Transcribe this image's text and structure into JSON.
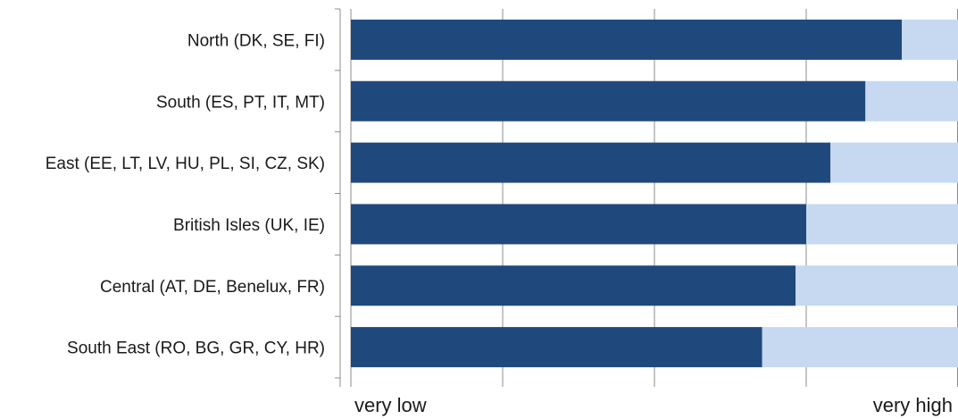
{
  "chart_data": {
    "type": "bar",
    "orientation": "horizontal",
    "stacked": true,
    "title": "",
    "xlabel": "",
    "ylabel": "",
    "categories": [
      "North (DK, SE, FI)",
      "South (ES, PT, IT,  MT)",
      "East (EE, LT, LV, HU, PL, SI, CZ, SK)",
      "British Isles (UK, IE)",
      "Central (AT, DE, Benelux, FR)",
      "South East (RO, BG, GR, CY, HR)"
    ],
    "series": [
      {
        "values": [
          3.63,
          3.39,
          3.16,
          3.0,
          2.93,
          2.71
        ],
        "color": "#1f497d"
      },
      {
        "values": [
          0.37,
          0.61,
          0.84,
          1.0,
          1.07,
          1.29
        ],
        "color": "#c6d9f1"
      }
    ],
    "xlim": [
      0,
      4
    ],
    "x_tick_labels": [
      "very low",
      "",
      "",
      "",
      "very high"
    ],
    "grid": "vertical",
    "legend": "none"
  }
}
